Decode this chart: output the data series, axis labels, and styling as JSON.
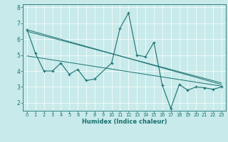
{
  "xlabel": "Humidex (Indice chaleur)",
  "background_color": "#c8eaea",
  "grid_color": "#ffffff",
  "line_color": "#1a7070",
  "xlim": [
    -0.5,
    23.5
  ],
  "ylim": [
    1.5,
    8.2
  ],
  "yticks": [
    2,
    3,
    4,
    5,
    6,
    7,
    8
  ],
  "xticks": [
    0,
    1,
    2,
    3,
    4,
    5,
    6,
    7,
    8,
    9,
    10,
    11,
    12,
    13,
    14,
    15,
    16,
    17,
    18,
    19,
    20,
    21,
    22,
    23
  ],
  "series_main_x": [
    0,
    1,
    2,
    3,
    4,
    5,
    6,
    7,
    8,
    10,
    11,
    12,
    13,
    14,
    15,
    16,
    17,
    18,
    19,
    20,
    21,
    22,
    23
  ],
  "series_main_y": [
    6.6,
    5.1,
    4.0,
    4.0,
    4.5,
    3.8,
    4.1,
    3.4,
    3.5,
    4.5,
    6.7,
    7.65,
    5.0,
    4.9,
    5.8,
    3.1,
    1.65,
    3.15,
    2.8,
    3.0,
    2.95,
    2.85,
    3.0
  ],
  "series_line1_x": [
    0,
    23
  ],
  "series_line1_y": [
    6.6,
    3.15
  ],
  "series_line2_x": [
    0,
    23
  ],
  "series_line2_y": [
    6.5,
    3.25
  ],
  "series_line3_x": [
    0,
    23
  ],
  "series_line3_y": [
    4.95,
    3.05
  ]
}
